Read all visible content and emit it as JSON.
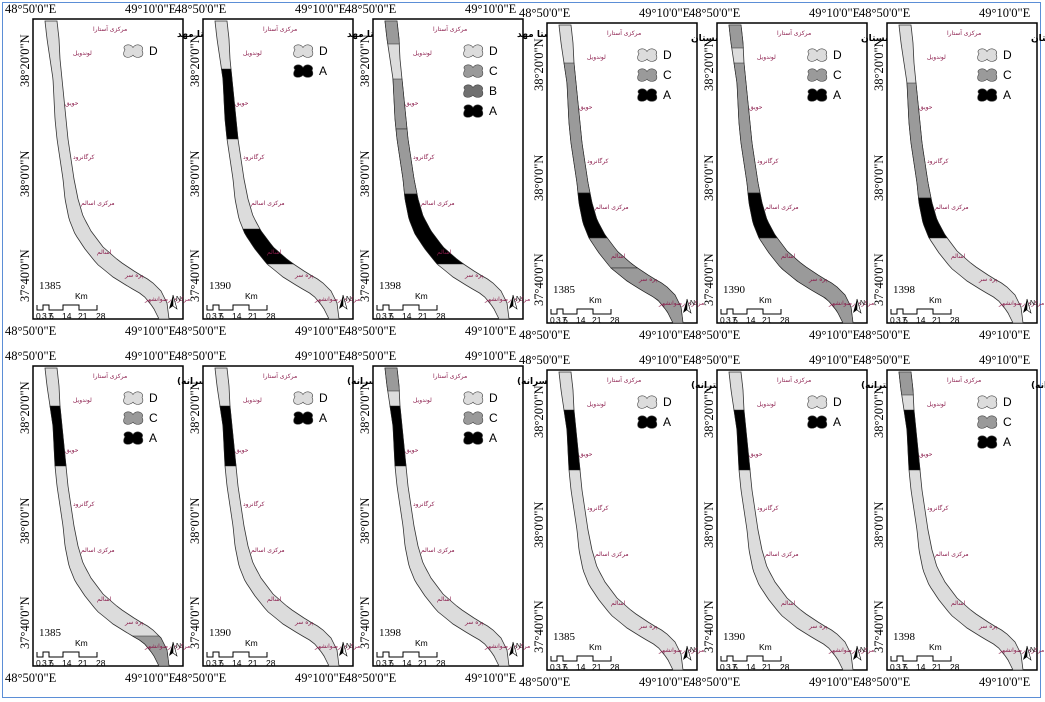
{
  "figure": {
    "lon_labels": [
      "48°50'0\"E",
      "49°10'0\"E"
    ],
    "lat_labels": [
      "38°20'0\"N",
      "38°0'0\"N",
      "37°40'0\"N"
    ],
    "colors": {
      "D": "#dcdcdc",
      "C": "#9a9a9a",
      "B": "#707070",
      "A": "#000000",
      "border": "#000000"
    },
    "scale": {
      "unit": "Km",
      "ticks": [
        "0",
        "3.5",
        "7",
        "14",
        "21",
        "28"
      ]
    },
    "north_label": "N",
    "places": [
      "مرکزی آستارا",
      "لوندویل",
      "حویق",
      "کرگانرود",
      "مرکزی اسالم",
      "اسالم",
      "پره سر",
      "مرکزی رضوانشهر"
    ]
  },
  "panels": [
    {
      "title": "روستا مهد",
      "year": "1385",
      "legend": [
        "D"
      ]
    },
    {
      "title": "روستا مهد",
      "year": "1390",
      "legend": [
        "D",
        "A"
      ]
    },
    {
      "title": "روستا مهد",
      "year": "1398",
      "legend": [
        "D",
        "C",
        "B",
        "A"
      ]
    },
    {
      "title": "دبستان",
      "year": "1385",
      "legend": [
        "D",
        "C",
        "A"
      ]
    },
    {
      "title": "دبستان",
      "year": "1390",
      "legend": [
        "D",
        "C",
        "A"
      ]
    },
    {
      "title": "دبستان",
      "year": "1398",
      "legend": [
        "D",
        "C",
        "A"
      ]
    },
    {
      "title": "راهنمایی (پسرانه)",
      "year": "1385",
      "legend": [
        "D",
        "C",
        "A"
      ]
    },
    {
      "title": "راهنمایی (پسرانه)",
      "year": "1390",
      "legend": [
        "D",
        "A"
      ]
    },
    {
      "title": "راهنمایی (پسرانه)",
      "year": "1398",
      "legend": [
        "D",
        "C",
        "A"
      ]
    },
    {
      "title": "راهنمایی (دخترانه)",
      "year": "1385",
      "legend": [
        "D",
        "A"
      ]
    },
    {
      "title": "راهنمایی (دخترانه)",
      "year": "1390",
      "legend": [
        "D",
        "A"
      ]
    },
    {
      "title": "راهنمایی (دخترانه)",
      "year": "1398",
      "legend": [
        "D",
        "C",
        "A"
      ]
    }
  ]
}
